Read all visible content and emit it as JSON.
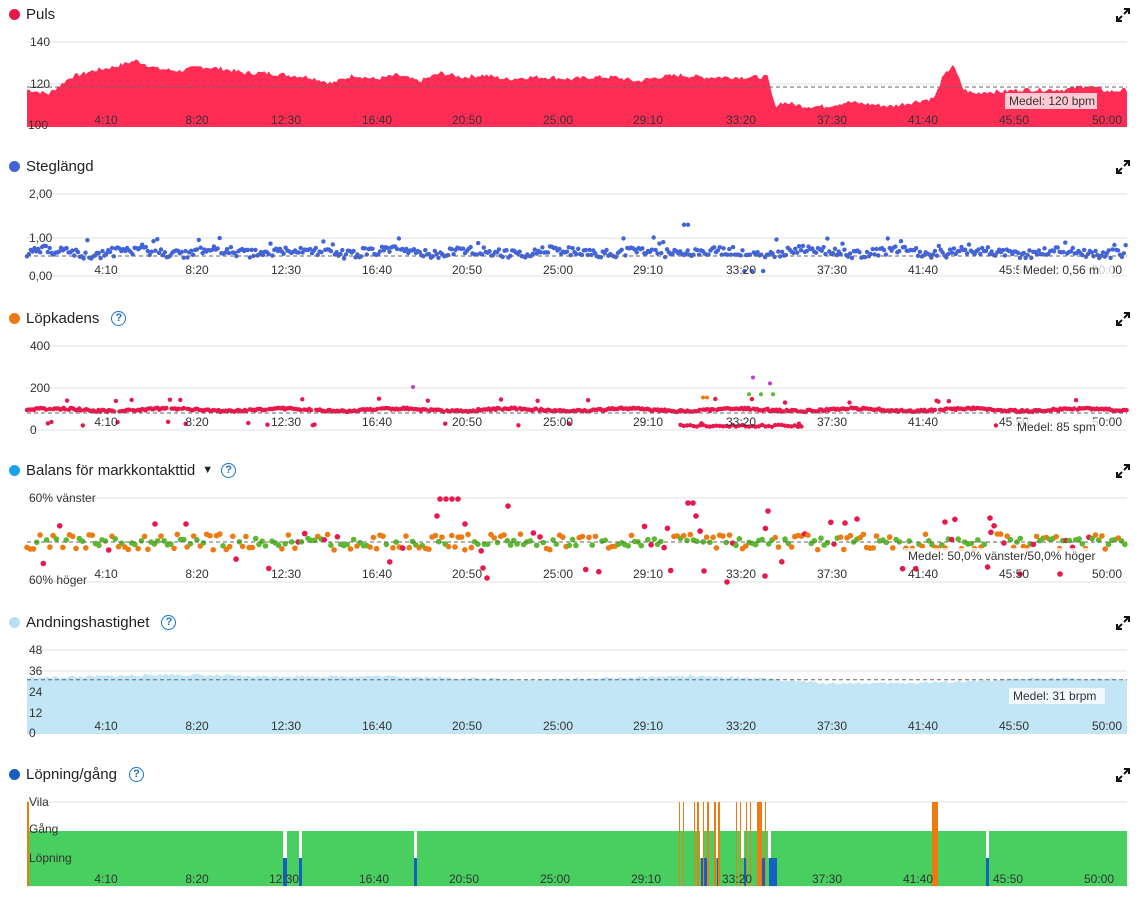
{
  "expand_icon": "expand-diagonal-icon",
  "x_ticks": [
    "4:10",
    "8:20",
    "12:30",
    "16:40",
    "20:50",
    "25:00",
    "29:10",
    "33:20",
    "37:30",
    "41:40",
    "45:50",
    "50:00"
  ],
  "panels": {
    "puls": {
      "title": "Puls",
      "color": "#e8174c",
      "y_ticks": [
        "140",
        "120",
        "100"
      ],
      "mean_label": "Medel: 120 bpm"
    },
    "steglangd": {
      "title": "Steglängd",
      "color": "#4264d8",
      "y_ticks": [
        "2,00",
        "1,00",
        "0,00"
      ],
      "mean_label": "Medel: 0,56 m"
    },
    "lopkadens": {
      "title": "Löpkadens",
      "color": "#ee7a12",
      "help_icon": "help-icon",
      "y_ticks": [
        "400",
        "200",
        "0"
      ],
      "mean_label": "Medel: 85 spm"
    },
    "balans": {
      "title": "Balans för markkontakttid",
      "color": "#1aa3e8",
      "caret_icon": "caret-down-icon",
      "help_icon": "help-icon",
      "y_ticks": [
        "60% vänster",
        "60% höger"
      ],
      "mean_label": "Medel: 50,0% vänster/50,0% höger"
    },
    "andning": {
      "title": "Andningshastighet",
      "color": "#b6e0f5",
      "help_icon": "help-icon",
      "y_ticks": [
        "48",
        "36",
        "24",
        "12",
        "0"
      ],
      "mean_label": "Medel: 31 brpm"
    },
    "lopning": {
      "title": "Löpning/gång",
      "color": "#1660c0",
      "help_icon": "help-icon",
      "y_ticks": [
        "Vila",
        "Gång",
        "Löpning"
      ]
    }
  },
  "chart_data": [
    {
      "type": "area",
      "title": "Puls",
      "ylabel": "",
      "unit": "bpm",
      "ylim": [
        100,
        145
      ],
      "xlim": [
        0,
        3030
      ],
      "color": "#ff2d55",
      "mean": 120,
      "x": [
        0,
        60,
        120,
        180,
        240,
        300,
        360,
        420,
        480,
        540,
        600,
        660,
        720,
        780,
        840,
        900,
        960,
        1020,
        1080,
        1140,
        1200,
        1260,
        1320,
        1380,
        1440,
        1500,
        1560,
        1620,
        1680,
        1740,
        1800,
        1860,
        1920,
        1980,
        2040,
        2060,
        2080,
        2140,
        2200,
        2260,
        2320,
        2380,
        2440,
        2500,
        2520,
        2550,
        2580,
        2610,
        2640,
        2680,
        2740,
        2800,
        2860,
        2920,
        2980,
        3030
      ],
      "y": [
        118,
        116,
        124,
        127,
        129,
        132,
        128,
        127,
        129,
        128,
        126,
        126,
        125,
        124,
        121,
        125,
        123,
        125,
        122,
        126,
        124,
        125,
        123,
        124,
        124,
        123,
        124,
        124,
        122,
        124,
        125,
        124,
        124,
        124,
        124,
        110,
        112,
        110,
        110,
        112,
        111,
        110,
        112,
        114,
        123,
        130,
        118,
        116,
        117,
        117,
        118,
        118,
        118,
        120,
        117,
        118
      ]
    },
    {
      "type": "scatter",
      "title": "Steglängd",
      "unit": "m",
      "ylim": [
        0,
        2.0
      ],
      "color": "#4264d8",
      "mean": 0.56,
      "summary": {
        "typical_range": [
          0.45,
          0.75
        ],
        "max": 1.25,
        "max_near": "30:45",
        "min_near": "33:30",
        "min": 0.1
      }
    },
    {
      "type": "scatter",
      "title": "Löpkadens",
      "unit": "spm",
      "ylim": [
        0,
        400
      ],
      "color": "#e8174c",
      "mean": 85,
      "summary": {
        "typical_range": [
          80,
          105
        ],
        "outliers": [
          {
            "x": "17:10",
            "y": 205
          },
          {
            "x": "33:35",
            "y": 250
          },
          {
            "x": "34:05",
            "y": 225
          },
          {
            "x": "32:15",
            "y": 150
          },
          {
            "x": "33:45",
            "y": 170
          }
        ]
      }
    },
    {
      "type": "scatter",
      "title": "Balans för markkontakttid",
      "ylim": [
        "60% höger",
        "60% vänster"
      ],
      "mean": "50,0% vänster/50,0% höger",
      "colors": {
        "balanced": "#5cb82e",
        "slight": "#ee7a12",
        "strong": "#e8174c"
      }
    },
    {
      "type": "area",
      "title": "Andningshastighet",
      "unit": "brpm",
      "ylim": [
        0,
        48
      ],
      "color": "#c3e6f7",
      "mean": 31,
      "x": [
        0,
        200,
        400,
        600,
        800,
        1000,
        1200,
        1400,
        1600,
        1800,
        2000,
        2200,
        2400,
        2600,
        2800,
        3030
      ],
      "y": [
        32,
        33,
        34,
        33,
        33,
        33,
        32,
        31,
        32,
        33,
        32,
        29,
        29,
        30,
        32,
        31
      ]
    },
    {
      "type": "bar",
      "title": "Löpning/gång",
      "categories": [
        "Vila",
        "Gång",
        "Löpning"
      ],
      "colors": {
        "Löpning": "#1660c0",
        "Gång": "#48cf60",
        "Vila": "#ee7a12"
      },
      "summary": "Mostly Gång; short Löpning segments near 12:30, 13:00, 19:30, 33:20–34:10, 44:20; Vila spikes around 32:00–35:00 and 41:40"
    }
  ]
}
